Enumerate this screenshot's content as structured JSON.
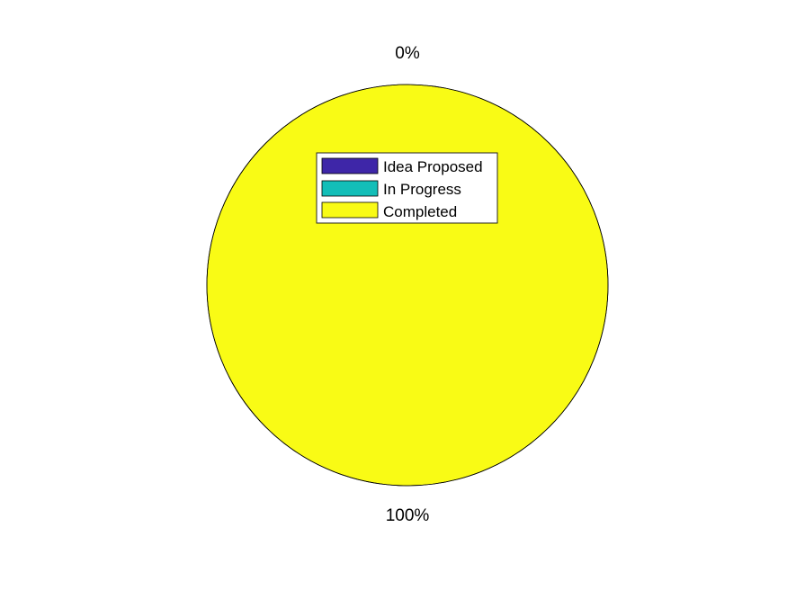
{
  "chart_data": {
    "type": "pie",
    "title": "",
    "categories": [
      "Idea Proposed",
      "In Progress",
      "Completed"
    ],
    "values": [
      0,
      0,
      100
    ],
    "data_labels": [
      "0%",
      "",
      "100%"
    ],
    "colors": [
      "#3e26a8",
      "#13beb8",
      "#f9fb15"
    ],
    "legend": {
      "entries": [
        "Idea Proposed",
        "In Progress",
        "Completed"
      ],
      "placement": "inside-top"
    }
  }
}
